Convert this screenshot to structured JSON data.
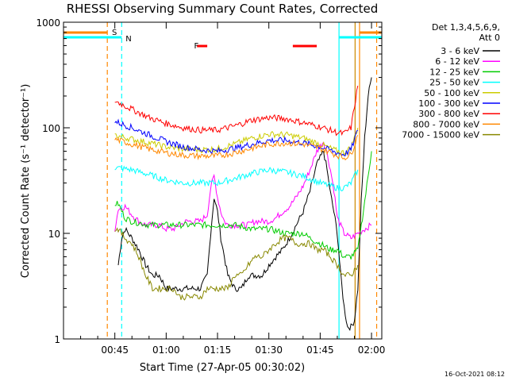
{
  "chart_data": {
    "type": "line",
    "title": "RHESSI Observing Summary Count Rates, Corrected",
    "xlabel": "Start Time (27-Apr-05 00:30:02)",
    "ylabel": "Corrected Count Rate (s⁻¹ detector⁻¹)",
    "yscale": "log",
    "ylim": [
      1,
      1000
    ],
    "xlim_minutes": [
      0,
      93
    ],
    "x_ticks": [
      {
        "minute": 15,
        "label": "00:45"
      },
      {
        "minute": 30,
        "label": "01:00"
      },
      {
        "minute": 45,
        "label": "01:15"
      },
      {
        "minute": 60,
        "label": "01:30"
      },
      {
        "minute": 75,
        "label": "01:45"
      },
      {
        "minute": 90,
        "label": "02:00"
      }
    ],
    "y_ticks": [
      {
        "value": 1,
        "label": "1"
      },
      {
        "value": 10,
        "label": "10"
      },
      {
        "value": 100,
        "label": "100"
      },
      {
        "value": 1000,
        "label": "1000"
      }
    ],
    "legend": {
      "header_line1": "Det 1,3,4,5,6,9,",
      "header_line2": "Att 0",
      "placement": "right"
    },
    "series": [
      {
        "name": "3 - 6 keV",
        "color": "#000000",
        "x": [
          16,
          17,
          18,
          20,
          22,
          24,
          26,
          28,
          30,
          32,
          34,
          36,
          38,
          40,
          42,
          43,
          44,
          45,
          46,
          47,
          48,
          50,
          52,
          54,
          56,
          58,
          60,
          62,
          64,
          66,
          68,
          70,
          72,
          74,
          76,
          77,
          78,
          79,
          80,
          81,
          82,
          83,
          84,
          85,
          86,
          87,
          88,
          89,
          90
        ],
        "values": [
          5,
          9,
          11,
          9,
          7,
          5,
          4,
          4,
          3,
          3,
          3,
          3,
          3,
          3,
          4,
          10,
          22,
          16,
          9,
          6,
          4,
          3,
          3,
          4,
          4,
          4,
          5,
          6,
          7,
          9,
          12,
          16,
          25,
          45,
          60,
          40,
          24,
          16,
          10,
          4,
          2,
          1.3,
          1.3,
          1.5,
          3,
          20,
          80,
          200,
          300
        ]
      },
      {
        "name": "6 - 12 keV",
        "color": "#ff00ff",
        "x": [
          15,
          16,
          18,
          20,
          22,
          24,
          26,
          28,
          30,
          32,
          34,
          36,
          38,
          40,
          42,
          43,
          44,
          45,
          46,
          47,
          48,
          50,
          52,
          54,
          56,
          58,
          60,
          62,
          64,
          66,
          68,
          70,
          72,
          74,
          76,
          77,
          78,
          79,
          80,
          82,
          84,
          86,
          88,
          90
        ],
        "values": [
          11,
          17,
          18,
          15,
          13,
          12,
          12,
          12,
          11,
          11,
          12,
          13,
          13,
          13,
          15,
          27,
          35,
          22,
          16,
          13,
          12,
          12,
          12,
          12,
          13,
          13,
          13,
          14,
          16,
          18,
          22,
          28,
          40,
          60,
          75,
          58,
          40,
          26,
          14,
          10,
          9,
          10,
          11,
          12
        ]
      },
      {
        "name": "12 - 25 keV",
        "color": "#00cc00",
        "x": [
          15,
          16,
          18,
          20,
          25,
          30,
          35,
          40,
          45,
          50,
          55,
          60,
          65,
          70,
          72,
          75,
          78,
          80,
          82,
          84,
          86,
          88,
          90
        ],
        "values": [
          19,
          19,
          14,
          13,
          12,
          12,
          12,
          12,
          12,
          12,
          11,
          11,
          10,
          10,
          9,
          8,
          7,
          7,
          6,
          6,
          7,
          20,
          60
        ]
      },
      {
        "name": "25 - 50 keV",
        "color": "#00ffff",
        "x": [
          15,
          20,
          25,
          30,
          35,
          40,
          45,
          50,
          55,
          60,
          65,
          70,
          75,
          80,
          82,
          84,
          86
        ],
        "values": [
          42,
          40,
          36,
          32,
          30,
          30,
          30,
          33,
          37,
          40,
          38,
          35,
          30,
          27,
          27,
          30,
          40
        ]
      },
      {
        "name": "50 - 100 keV",
        "color": "#cccc00",
        "x": [
          15,
          20,
          25,
          30,
          35,
          40,
          45,
          50,
          55,
          60,
          65,
          70,
          75,
          80,
          82,
          84,
          86
        ],
        "values": [
          85,
          78,
          72,
          66,
          63,
          62,
          63,
          70,
          80,
          87,
          86,
          80,
          70,
          60,
          58,
          65,
          100
        ]
      },
      {
        "name": "100 - 300 keV",
        "color": "#0000ff",
        "x": [
          15,
          20,
          25,
          30,
          35,
          40,
          45,
          50,
          55,
          60,
          65,
          70,
          75,
          80,
          82,
          84,
          86
        ],
        "values": [
          115,
          100,
          86,
          74,
          66,
          62,
          60,
          64,
          70,
          76,
          76,
          72,
          66,
          58,
          56,
          62,
          95
        ]
      },
      {
        "name": "300 - 800 keV",
        "color": "#ff0000",
        "x": [
          15,
          20,
          25,
          30,
          35,
          40,
          45,
          50,
          55,
          60,
          65,
          70,
          75,
          80,
          82,
          84,
          86
        ],
        "values": [
          180,
          150,
          125,
          110,
          100,
          95,
          95,
          104,
          118,
          125,
          122,
          112,
          102,
          90,
          88,
          100,
          250
        ]
      },
      {
        "name": "800 - 7000 keV",
        "color": "#ff8800",
        "x": [
          15,
          20,
          25,
          30,
          35,
          40,
          45,
          50,
          55,
          60,
          65,
          70,
          75,
          80,
          82,
          84,
          86
        ],
        "values": [
          78,
          70,
          63,
          58,
          55,
          54,
          54,
          58,
          64,
          70,
          72,
          70,
          64,
          55,
          52,
          56,
          85
        ]
      },
      {
        "name": "7000 - 15000 keV",
        "color": "#888800",
        "x": [
          15,
          16,
          18,
          20,
          22,
          24,
          26,
          28,
          30,
          32,
          34,
          36,
          38,
          40,
          42,
          44,
          46,
          48,
          50,
          52,
          54,
          56,
          58,
          60,
          62,
          64,
          66,
          68,
          70,
          72,
          74,
          76,
          78,
          80,
          82,
          84,
          86
        ],
        "values": [
          11,
          11,
          9,
          8,
          6,
          4,
          3,
          3,
          3,
          3,
          2.5,
          2.5,
          2.5,
          2.5,
          3,
          3,
          3,
          3,
          4,
          4,
          5,
          6,
          6,
          7,
          8,
          9,
          9,
          8,
          8,
          8,
          7,
          7,
          6,
          5,
          4,
          4,
          5
        ]
      }
    ],
    "annotations": [
      {
        "text": "S",
        "color": "#ff8800",
        "minute": 13
      },
      {
        "text": "N",
        "color": "#00ffff",
        "minute": 17
      },
      {
        "text": "F",
        "color": "#ff0000",
        "minute": 37
      }
    ],
    "vertical_markers": [
      {
        "minute": 12.8,
        "color": "#ff8800",
        "style": "dashed"
      },
      {
        "minute": 17,
        "color": "#00ffff",
        "style": "dashed"
      },
      {
        "minute": 80.5,
        "color": "#00ffff",
        "style": "solid"
      },
      {
        "minute": 85.2,
        "color": "#cc8800",
        "style": "solid"
      },
      {
        "minute": 86.5,
        "color": "#ff8800",
        "style": "solid"
      },
      {
        "minute": 91.5,
        "color": "#ff8800",
        "style": "dashed"
      }
    ],
    "state_bars": [
      {
        "label": "eclipse",
        "color": "#00ffff",
        "ranges": [
          [
            0,
            17
          ],
          [
            80.5,
            93
          ]
        ]
      },
      {
        "label": "saa",
        "color": "#ff8800",
        "ranges": [
          [
            0,
            12.8
          ],
          [
            86.5,
            93
          ]
        ]
      },
      {
        "label": "flare",
        "color": "#ff0000",
        "ranges": [
          [
            39,
            42
          ],
          [
            67,
            74
          ]
        ]
      }
    ]
  },
  "footer": {
    "timestamp": "16-Oct-2021 08:12"
  }
}
